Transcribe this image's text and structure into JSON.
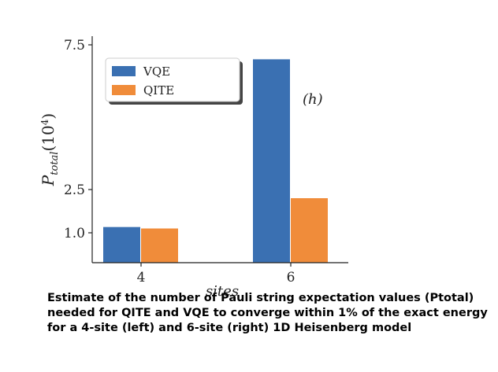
{
  "chart_data": {
    "type": "bar",
    "categories": [
      "4",
      "6"
    ],
    "series": [
      {
        "name": "VQE",
        "color": "#3a70b2",
        "values": [
          1.2,
          7.0
        ]
      },
      {
        "name": "QITE",
        "color": "#f08c3a",
        "values": [
          1.15,
          2.2
        ]
      }
    ],
    "ylabel_main": "P",
    "ylabel_sub": "total",
    "ylabel_unit_open": "(10",
    "ylabel_unit_exp": "4",
    "ylabel_unit_close": ")",
    "xlabel": "sites",
    "yticks": [
      1.0,
      2.5,
      7.5
    ],
    "ytick_labels": [
      "1.0",
      "2.5",
      "7.5"
    ],
    "ylim": [
      0,
      7.5
    ],
    "legend_position": "top-left",
    "annotation": "(h)",
    "grid": false
  },
  "caption": "Estimate of the number of Pauli string expectation values (Ptotal) needed for QITE and VQE to converge within  1% of the exact energy for a 4-site (left) and 6-site (right) 1D Heisenberg model"
}
